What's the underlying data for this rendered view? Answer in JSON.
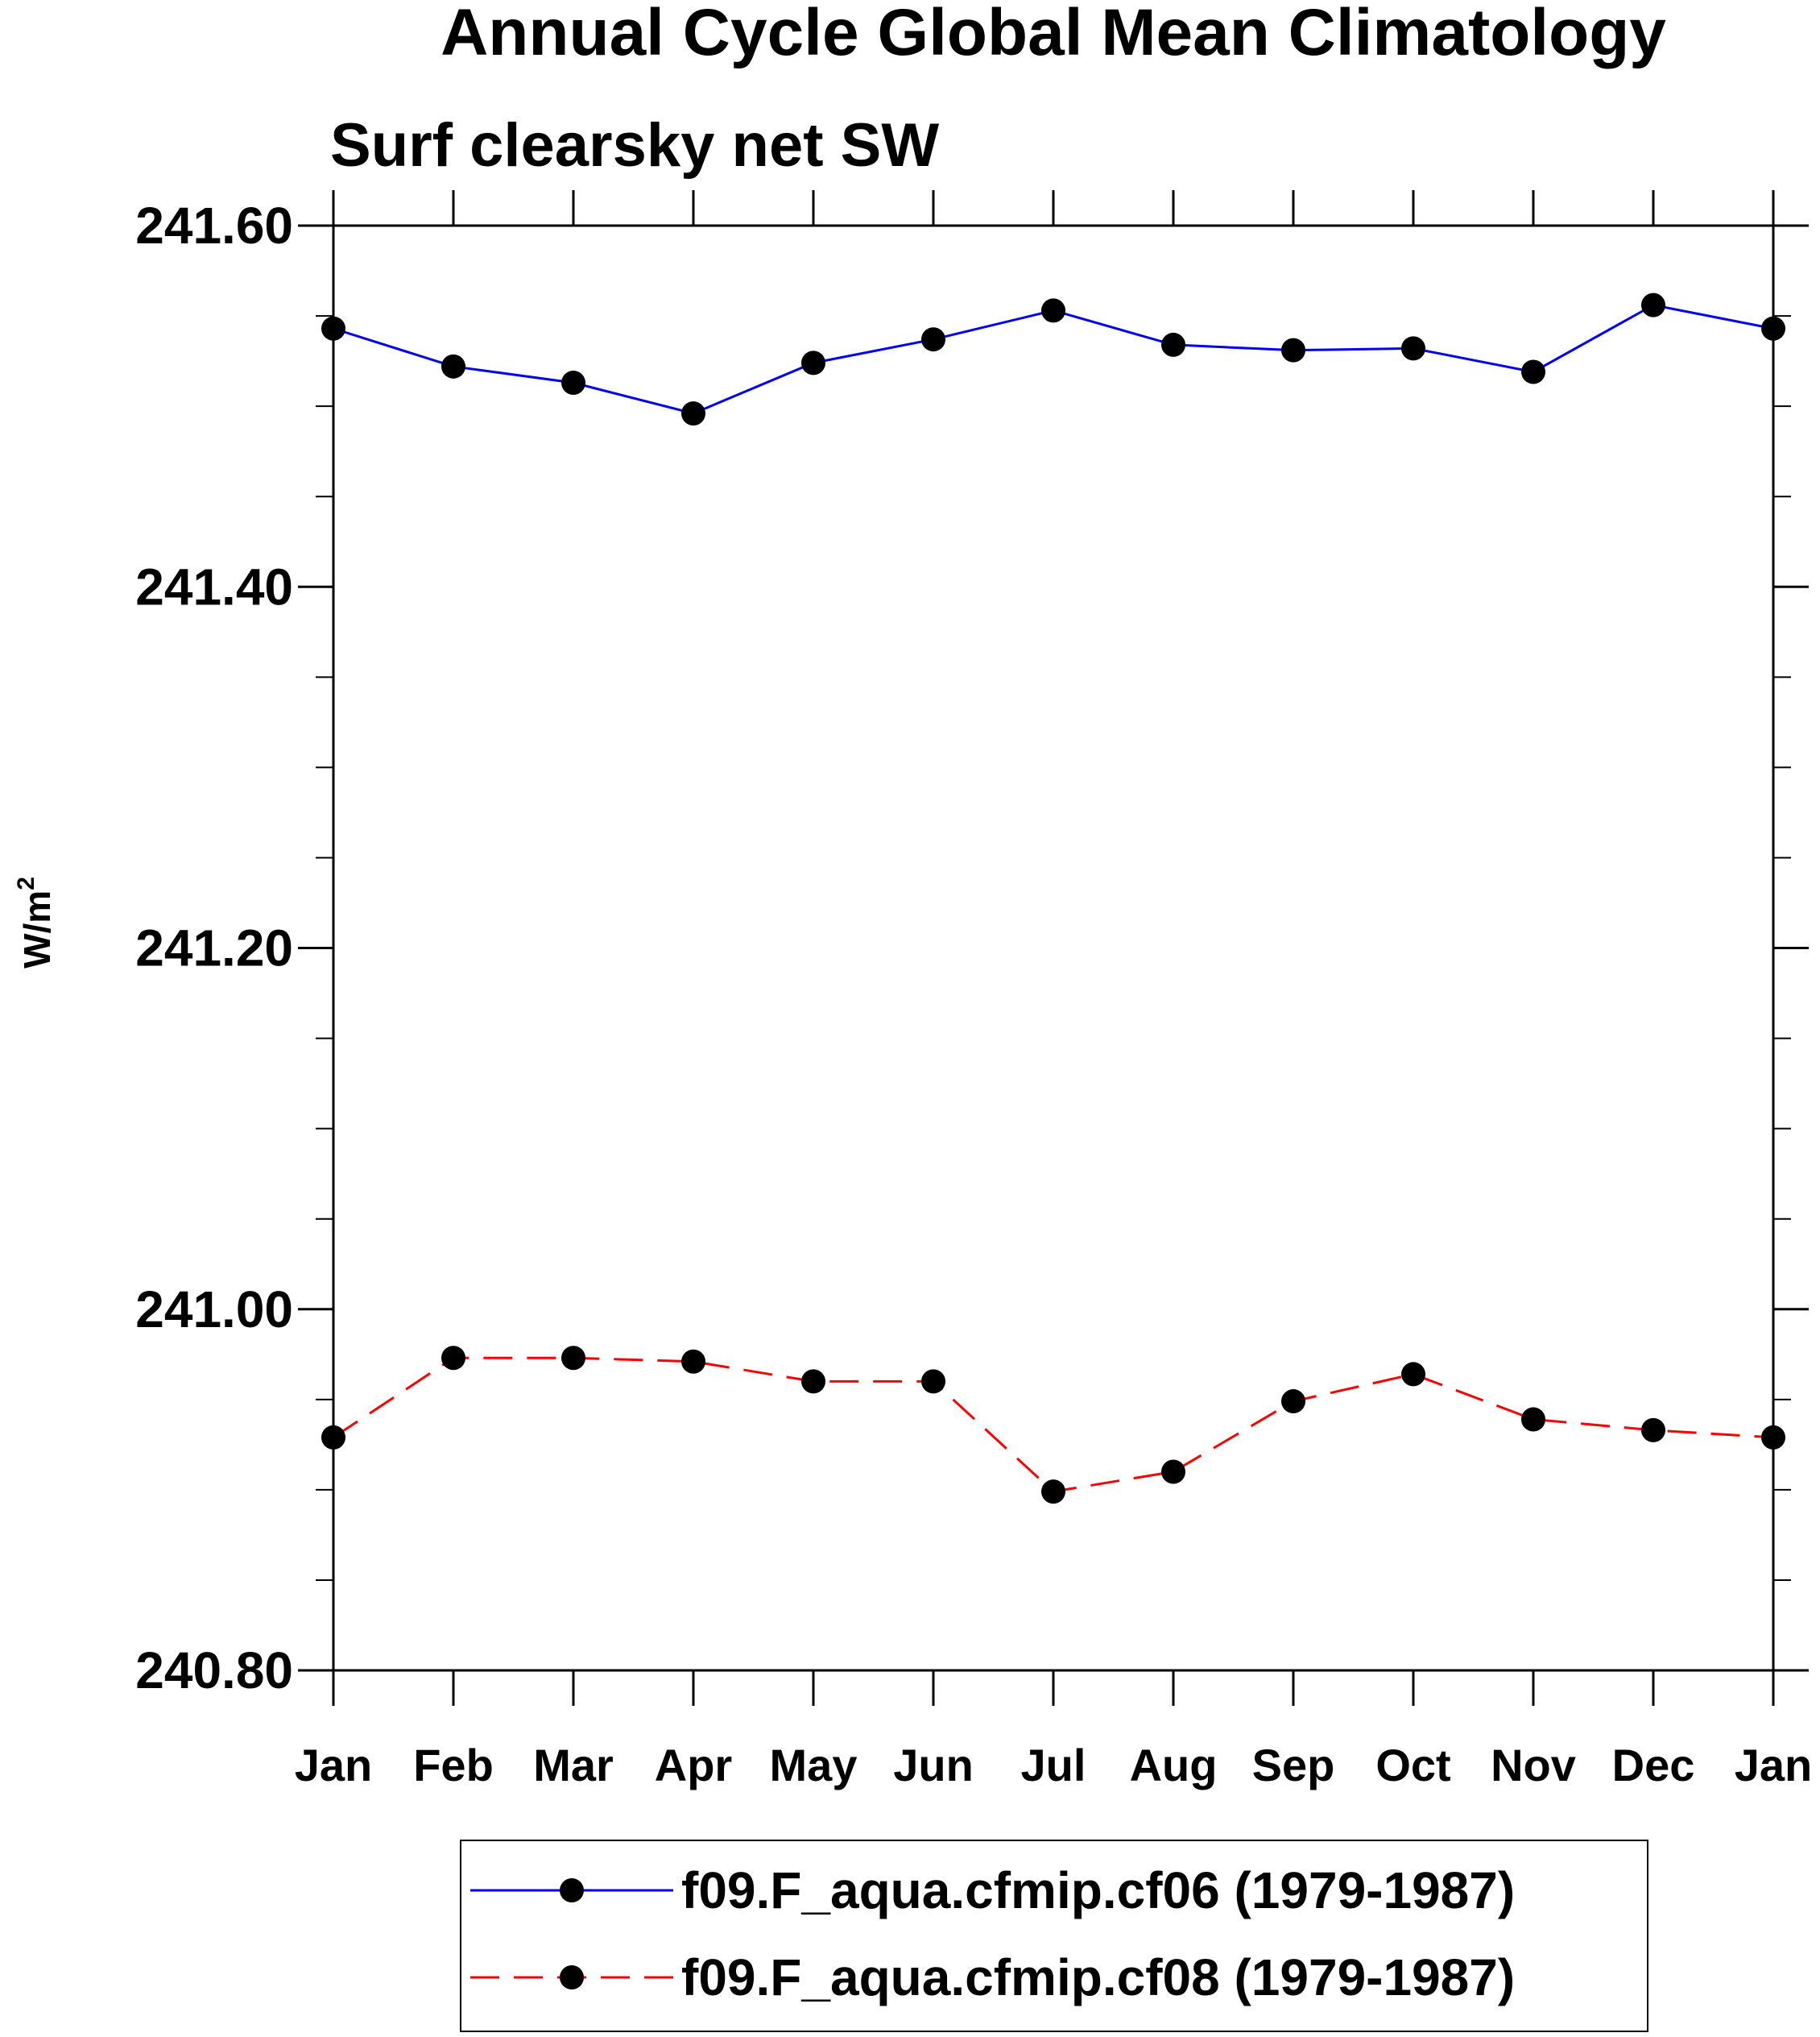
{
  "chart_data": {
    "type": "line",
    "title": "Annual Cycle Global Mean Climatology",
    "subtitle": "Surf clearsky net SW",
    "xlabel": "",
    "ylabel": "W/m",
    "ylabel_superscript": "2",
    "categories": [
      "Jan",
      "Feb",
      "Mar",
      "Apr",
      "May",
      "Jun",
      "Jul",
      "Aug",
      "Sep",
      "Oct",
      "Nov",
      "Dec",
      "Jan"
    ],
    "ylim": [
      240.8,
      241.6
    ],
    "yticks": [
      240.8,
      241.0,
      241.2,
      241.4,
      241.6
    ],
    "ytick_labels": [
      "240.80",
      "241.00",
      "241.20",
      "241.40",
      "241.60"
    ],
    "yminor_step": 0.05,
    "grid": false,
    "legend_position": "bottom-center",
    "series": [
      {
        "name": "f09.F_aqua.cfmip.cf06 (1979-1987)",
        "color": "#0000ff",
        "dash": "solid",
        "marker": "filled-circle",
        "values": [
          241.543,
          241.522,
          241.513,
          241.496,
          241.524,
          241.537,
          241.553,
          241.534,
          241.531,
          241.532,
          241.519,
          241.556,
          241.543
        ]
      },
      {
        "name": "f09.F_aqua.cfmip.cf08 (1979-1987)",
        "color": "#ff0000",
        "dash": "dashed",
        "marker": "filled-circle",
        "values": [
          240.929,
          240.973,
          240.973,
          240.971,
          240.96,
          240.96,
          240.899,
          240.91,
          240.949,
          240.964,
          240.939,
          240.933,
          240.929
        ]
      }
    ]
  }
}
